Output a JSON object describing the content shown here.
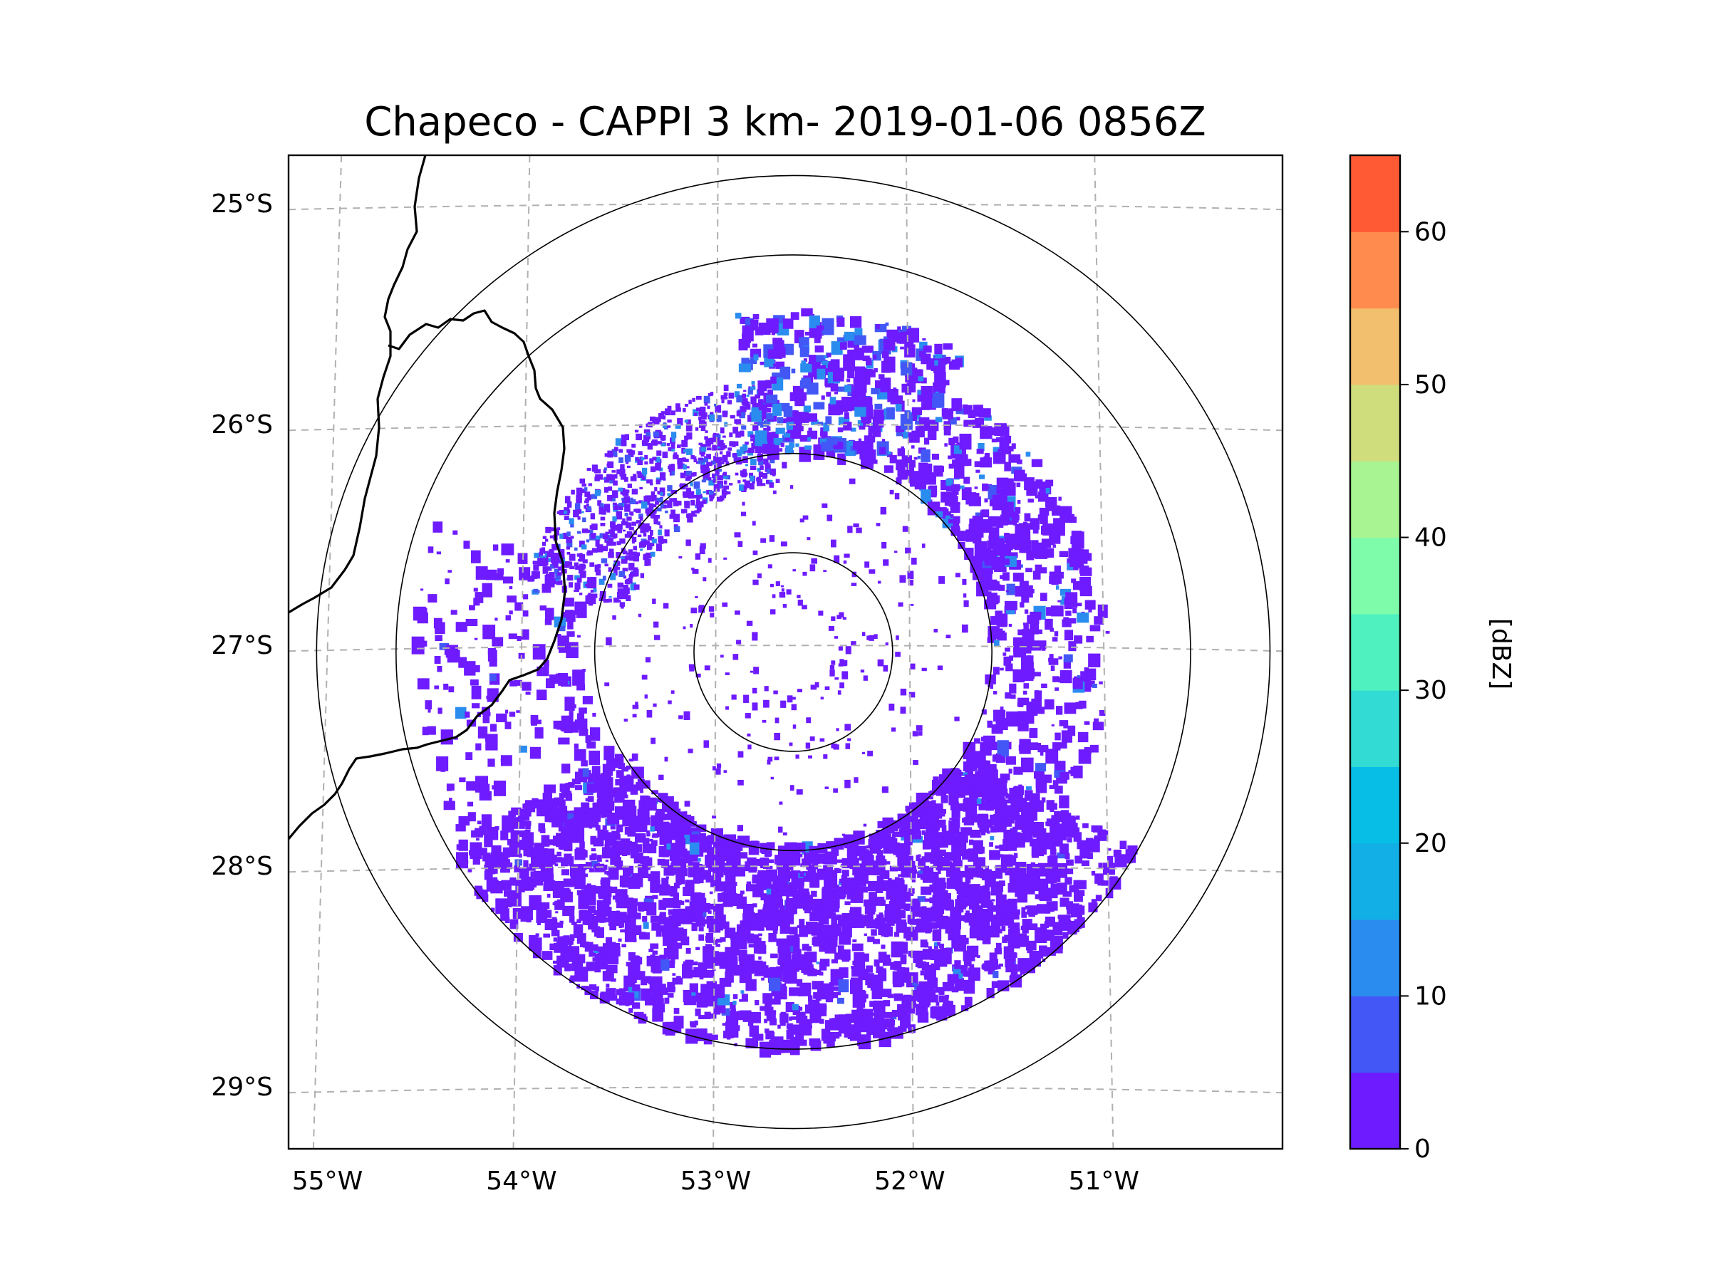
{
  "chart_data": {
    "type": "heatmap",
    "title": "Chapeco - CAPPI 3 km- 2019-01-06 0856Z",
    "projection": "radar PPI map (lon/lat)",
    "radar_center": {
      "lon": -52.6,
      "lat": -27.03
    },
    "xlim": [
      -55.2,
      -50.08
    ],
    "ylim": [
      -29.28,
      -24.78
    ],
    "x_ticks": [
      {
        "value": -55,
        "label": "55°W"
      },
      {
        "value": -54,
        "label": "54°W"
      },
      {
        "value": -53,
        "label": "53°W"
      },
      {
        "value": -52,
        "label": "52°W"
      },
      {
        "value": -51,
        "label": "51°W"
      }
    ],
    "y_ticks": [
      {
        "value": -25,
        "label": "25°S"
      },
      {
        "value": -26,
        "label": "26°S"
      },
      {
        "value": -27,
        "label": "27°S"
      },
      {
        "value": -28,
        "label": "28°S"
      },
      {
        "value": -29,
        "label": "29°S"
      }
    ],
    "range_rings_km": [
      50,
      100,
      200,
      240
    ],
    "grid": true,
    "colorbar": {
      "label": "[dBZ]",
      "min": 0,
      "max": 65,
      "step": 5,
      "ticks": [
        0,
        10,
        20,
        30,
        40,
        50,
        60
      ],
      "colors": [
        "#6e1bff",
        "#4257f6",
        "#2b8cf0",
        "#12aee6",
        "#07bfe6",
        "#32dcd4",
        "#4ff2be",
        "#7efcaa",
        "#a8f492",
        "#d0dd7c",
        "#f2bf6e",
        "#ff8c4e",
        "#ff5a34",
        "#ff1e16"
      ]
    },
    "echo_regions_dbz": [
      {
        "region": "north-northwest sector band",
        "dbz_range": [
          0,
          15
        ]
      },
      {
        "region": "northeast sector",
        "dbz_range": [
          0,
          10
        ]
      },
      {
        "region": "south-southeast sector",
        "dbz_range": [
          0,
          10
        ]
      },
      {
        "region": "east edge",
        "dbz_range": [
          0,
          5
        ]
      }
    ]
  }
}
